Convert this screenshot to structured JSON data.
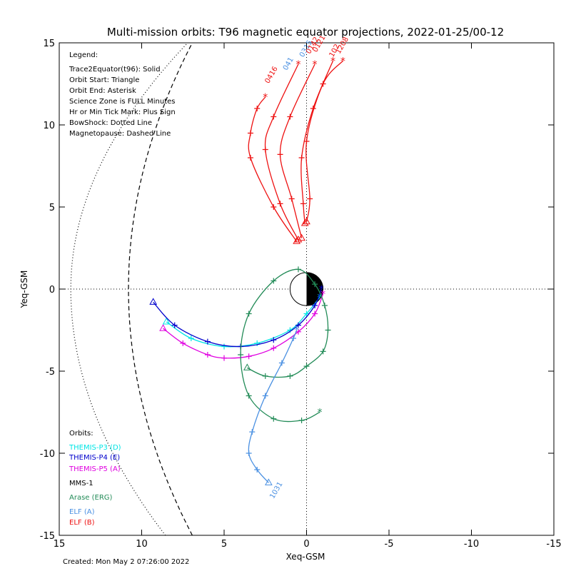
{
  "chart_data": {
    "type": "scatter",
    "title": "Multi-mission orbits: T96 magnetic equator projections, 2022-01-25/00-12",
    "xlabel": "Xeq-GSM",
    "ylabel": "Yeq-GSM",
    "xlim": [
      15,
      -15
    ],
    "ylim": [
      15,
      -15
    ],
    "x_ticks": [
      "15",
      "10",
      "5",
      "0",
      "-5",
      "-10",
      "-15"
    ],
    "y_ticks": [
      "-15",
      "-10",
      "-5",
      "0",
      "5",
      "10",
      "15"
    ],
    "created": "Created: Mon May  2 07:26:00 2022",
    "legend": {
      "heading": "Legend:",
      "lines": [
        "Trace2Equator(t96): Solid",
        "Orbit Start: Triangle",
        "Orbit End: Asterisk",
        "Science Zone is FULL Minutes",
        "Hr or Min Tick Mark: Plus Sign",
        "BowShock: Dotted Line",
        "Magnetopause: Dashed Line"
      ]
    },
    "orbits_heading": "Orbits:",
    "orbits": [
      {
        "label": "THEMIS-P3 (D)",
        "color": "#00e5e5"
      },
      {
        "label": "THEMIS-P4 (E)",
        "color": "#0000cc"
      },
      {
        "label": "THEMIS-P5 (A)",
        "color": "#e000e0"
      },
      {
        "label": "MMS-1",
        "color": "#000000"
      },
      {
        "label": "Arase (ERG)",
        "color": "#228b57"
      },
      {
        "label": "ELF (A)",
        "color": "#4a90e2"
      },
      {
        "label": "ELF (B)",
        "color": "#ee1111"
      }
    ],
    "series": [
      {
        "name": "THEMIS-P3 (D)",
        "color": "#00e5e5",
        "style": "solid",
        "points": [
          [
            8.5,
            -2.0
          ],
          [
            7,
            -3.0
          ],
          [
            5,
            -3.5
          ],
          [
            3,
            -3.3
          ],
          [
            1,
            -2.5
          ],
          [
            0,
            -1.5
          ],
          [
            -0.8,
            -0.5
          ]
        ]
      },
      {
        "name": "THEMIS-P4 (E)",
        "color": "#0000cc",
        "style": "solid",
        "points": [
          [
            9.3,
            -0.8
          ],
          [
            8,
            -2.2
          ],
          [
            6,
            -3.2
          ],
          [
            4,
            -3.5
          ],
          [
            2,
            -3.1
          ],
          [
            0.5,
            -2.2
          ],
          [
            -0.5,
            -1.0
          ],
          [
            -0.9,
            0.0
          ]
        ]
      },
      {
        "name": "THEMIS-P5 (A)",
        "color": "#e000e0",
        "style": "solid",
        "points": [
          [
            8.7,
            -2.4
          ],
          [
            7.5,
            -3.3
          ],
          [
            6,
            -4.0
          ],
          [
            5,
            -4.2
          ],
          [
            3.5,
            -4.1
          ],
          [
            2,
            -3.6
          ],
          [
            0.5,
            -2.6
          ],
          [
            -0.5,
            -1.5
          ],
          [
            -1,
            -0.3
          ]
        ]
      },
      {
        "name": "Arase (ERG)",
        "color": "#228b57",
        "style": "solid",
        "points": [
          [
            3.6,
            -4.8
          ],
          [
            2.5,
            -5.3
          ],
          [
            1,
            -5.3
          ],
          [
            0,
            -4.7
          ],
          [
            -1,
            -3.8
          ],
          [
            -1.3,
            -2.5
          ],
          [
            -1.1,
            -1.0
          ],
          [
            -0.5,
            0.3
          ],
          [
            0.5,
            1.2
          ],
          [
            2,
            0.5
          ],
          [
            3.5,
            -1.5
          ],
          [
            4,
            -4
          ],
          [
            3.5,
            -6.5
          ],
          [
            2,
            -7.9
          ],
          [
            0.3,
            -8.0
          ],
          [
            -0.8,
            -7.5
          ]
        ]
      },
      {
        "name": "ELF (A)",
        "color": "#4a90e2",
        "style": "solid",
        "points": [
          [
            2.3,
            -11.8
          ],
          [
            3,
            -11
          ],
          [
            3.5,
            -10
          ],
          [
            3.3,
            -8.7
          ],
          [
            2.5,
            -6.5
          ],
          [
            1.5,
            -4.5
          ],
          [
            0.8,
            -3
          ],
          [
            0.6,
            -2.5
          ]
        ]
      },
      {
        "name": "ELF (B) #1",
        "color": "#ee1111",
        "style": "solid",
        "points": [
          [
            0.6,
            2.9
          ],
          [
            2,
            5
          ],
          [
            3.4,
            8
          ],
          [
            3.4,
            9.5
          ],
          [
            3,
            11
          ],
          [
            2.5,
            11.7
          ]
        ]
      },
      {
        "name": "ELF (B) #2",
        "color": "#ee1111",
        "style": "solid",
        "points": [
          [
            0.5,
            3.0
          ],
          [
            1.6,
            5.2
          ],
          [
            2.5,
            8.5
          ],
          [
            2,
            10.5
          ],
          [
            0.5,
            13.7
          ]
        ]
      },
      {
        "name": "ELF (B) #3",
        "color": "#ee1111",
        "style": "solid",
        "points": [
          [
            0.3,
            3.1
          ],
          [
            0.9,
            5.5
          ],
          [
            1.6,
            8.2
          ],
          [
            1,
            10.5
          ],
          [
            -0.5,
            13.7
          ]
        ]
      },
      {
        "name": "ELF (B) #4",
        "color": "#ee1111",
        "style": "solid",
        "points": [
          [
            0.1,
            4.0
          ],
          [
            0.2,
            5.2
          ],
          [
            0.3,
            8
          ],
          [
            -0.4,
            11
          ],
          [
            -1.6,
            13.9
          ]
        ]
      },
      {
        "name": "ELF (B) #5",
        "color": "#ee1111",
        "style": "solid",
        "points": [
          [
            0.0,
            4.1
          ],
          [
            -0.2,
            5.5
          ],
          [
            0,
            9
          ],
          [
            -1,
            12.5
          ],
          [
            -2.2,
            13.9
          ]
        ]
      }
    ],
    "orbit_labels": [
      {
        "text": "1031",
        "x": 2.0,
        "y": -12.8,
        "color": "#4a90e2"
      },
      {
        "text": "0416",
        "x": 2.3,
        "y": 12.5,
        "color": "#ee1111"
      },
      {
        "text": "041",
        "x": 1.2,
        "y": 13.3,
        "color": "#4a90e2"
      },
      {
        "text": "0315",
        "x": 0.2,
        "y": 14.1,
        "color": "#4a90e2"
      },
      {
        "text": "0142",
        "x": -0.2,
        "y": 14.3,
        "color": "#ee1111"
      },
      {
        "text": "0121",
        "x": -0.6,
        "y": 14.4,
        "color": "#ee1111"
      },
      {
        "text": "102",
        "x": -1.6,
        "y": 14.1,
        "color": "#ee1111"
      },
      {
        "text": "1208",
        "x": -2.0,
        "y": 14.3,
        "color": "#ee1111"
      }
    ],
    "magnetopause": {
      "style": "dashed",
      "color": "#000000"
    },
    "bowshock": {
      "style": "dotted",
      "color": "#000000"
    },
    "earth_radius": 1.0,
    "grid": "dotted zero lines"
  }
}
